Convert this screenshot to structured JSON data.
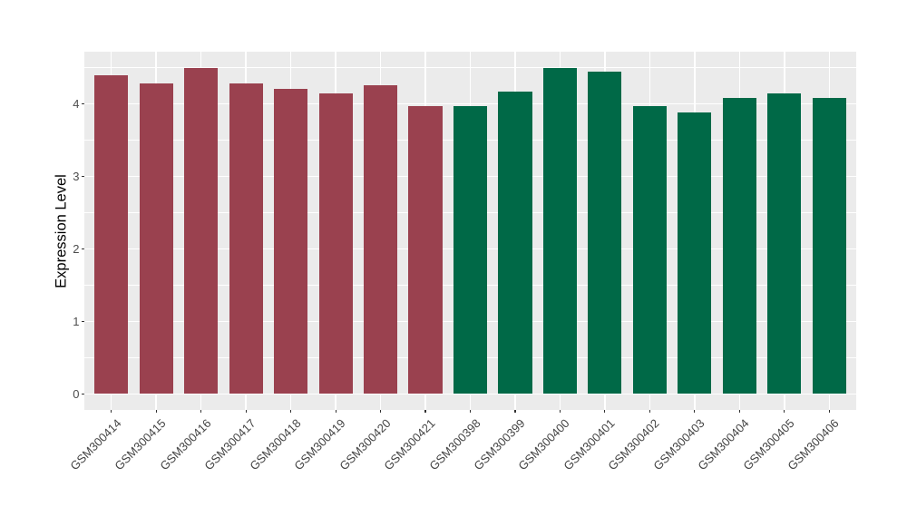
{
  "chart_data": {
    "type": "bar",
    "title": "",
    "xlabel": "",
    "ylabel": "Expression Level",
    "ylim": [
      -0.22,
      4.72
    ],
    "yticks": [
      0,
      1,
      2,
      3,
      4
    ],
    "grid": true,
    "legend": "none",
    "colors": {
      "panel_bg": "#EBEBEB",
      "grid": "#FFFFFF",
      "axis_text": "#4D4D4D",
      "axis_title": "#000000",
      "tick_mark": "#333333"
    },
    "bars": [
      {
        "label": "GSM300414",
        "value": 4.39,
        "color": "#9A414F"
      },
      {
        "label": "GSM300415",
        "value": 4.28,
        "color": "#9A414F"
      },
      {
        "label": "GSM300416",
        "value": 4.5,
        "color": "#9A414F"
      },
      {
        "label": "GSM300417",
        "value": 4.28,
        "color": "#9A414F"
      },
      {
        "label": "GSM300418",
        "value": 4.21,
        "color": "#9A414F"
      },
      {
        "label": "GSM300419",
        "value": 4.14,
        "color": "#9A414F"
      },
      {
        "label": "GSM300420",
        "value": 4.26,
        "color": "#9A414F"
      },
      {
        "label": "GSM300421",
        "value": 3.97,
        "color": "#9A414F"
      },
      {
        "label": "GSM300398",
        "value": 3.97,
        "color": "#006947"
      },
      {
        "label": "GSM300399",
        "value": 4.17,
        "color": "#006947"
      },
      {
        "label": "GSM300400",
        "value": 4.49,
        "color": "#006947"
      },
      {
        "label": "GSM300401",
        "value": 4.44,
        "color": "#006947"
      },
      {
        "label": "GSM300402",
        "value": 3.97,
        "color": "#006947"
      },
      {
        "label": "GSM300403",
        "value": 3.88,
        "color": "#006947"
      },
      {
        "label": "GSM300404",
        "value": 4.08,
        "color": "#006947"
      },
      {
        "label": "GSM300405",
        "value": 4.14,
        "color": "#006947"
      },
      {
        "label": "GSM300406",
        "value": 4.08,
        "color": "#006947"
      }
    ]
  }
}
